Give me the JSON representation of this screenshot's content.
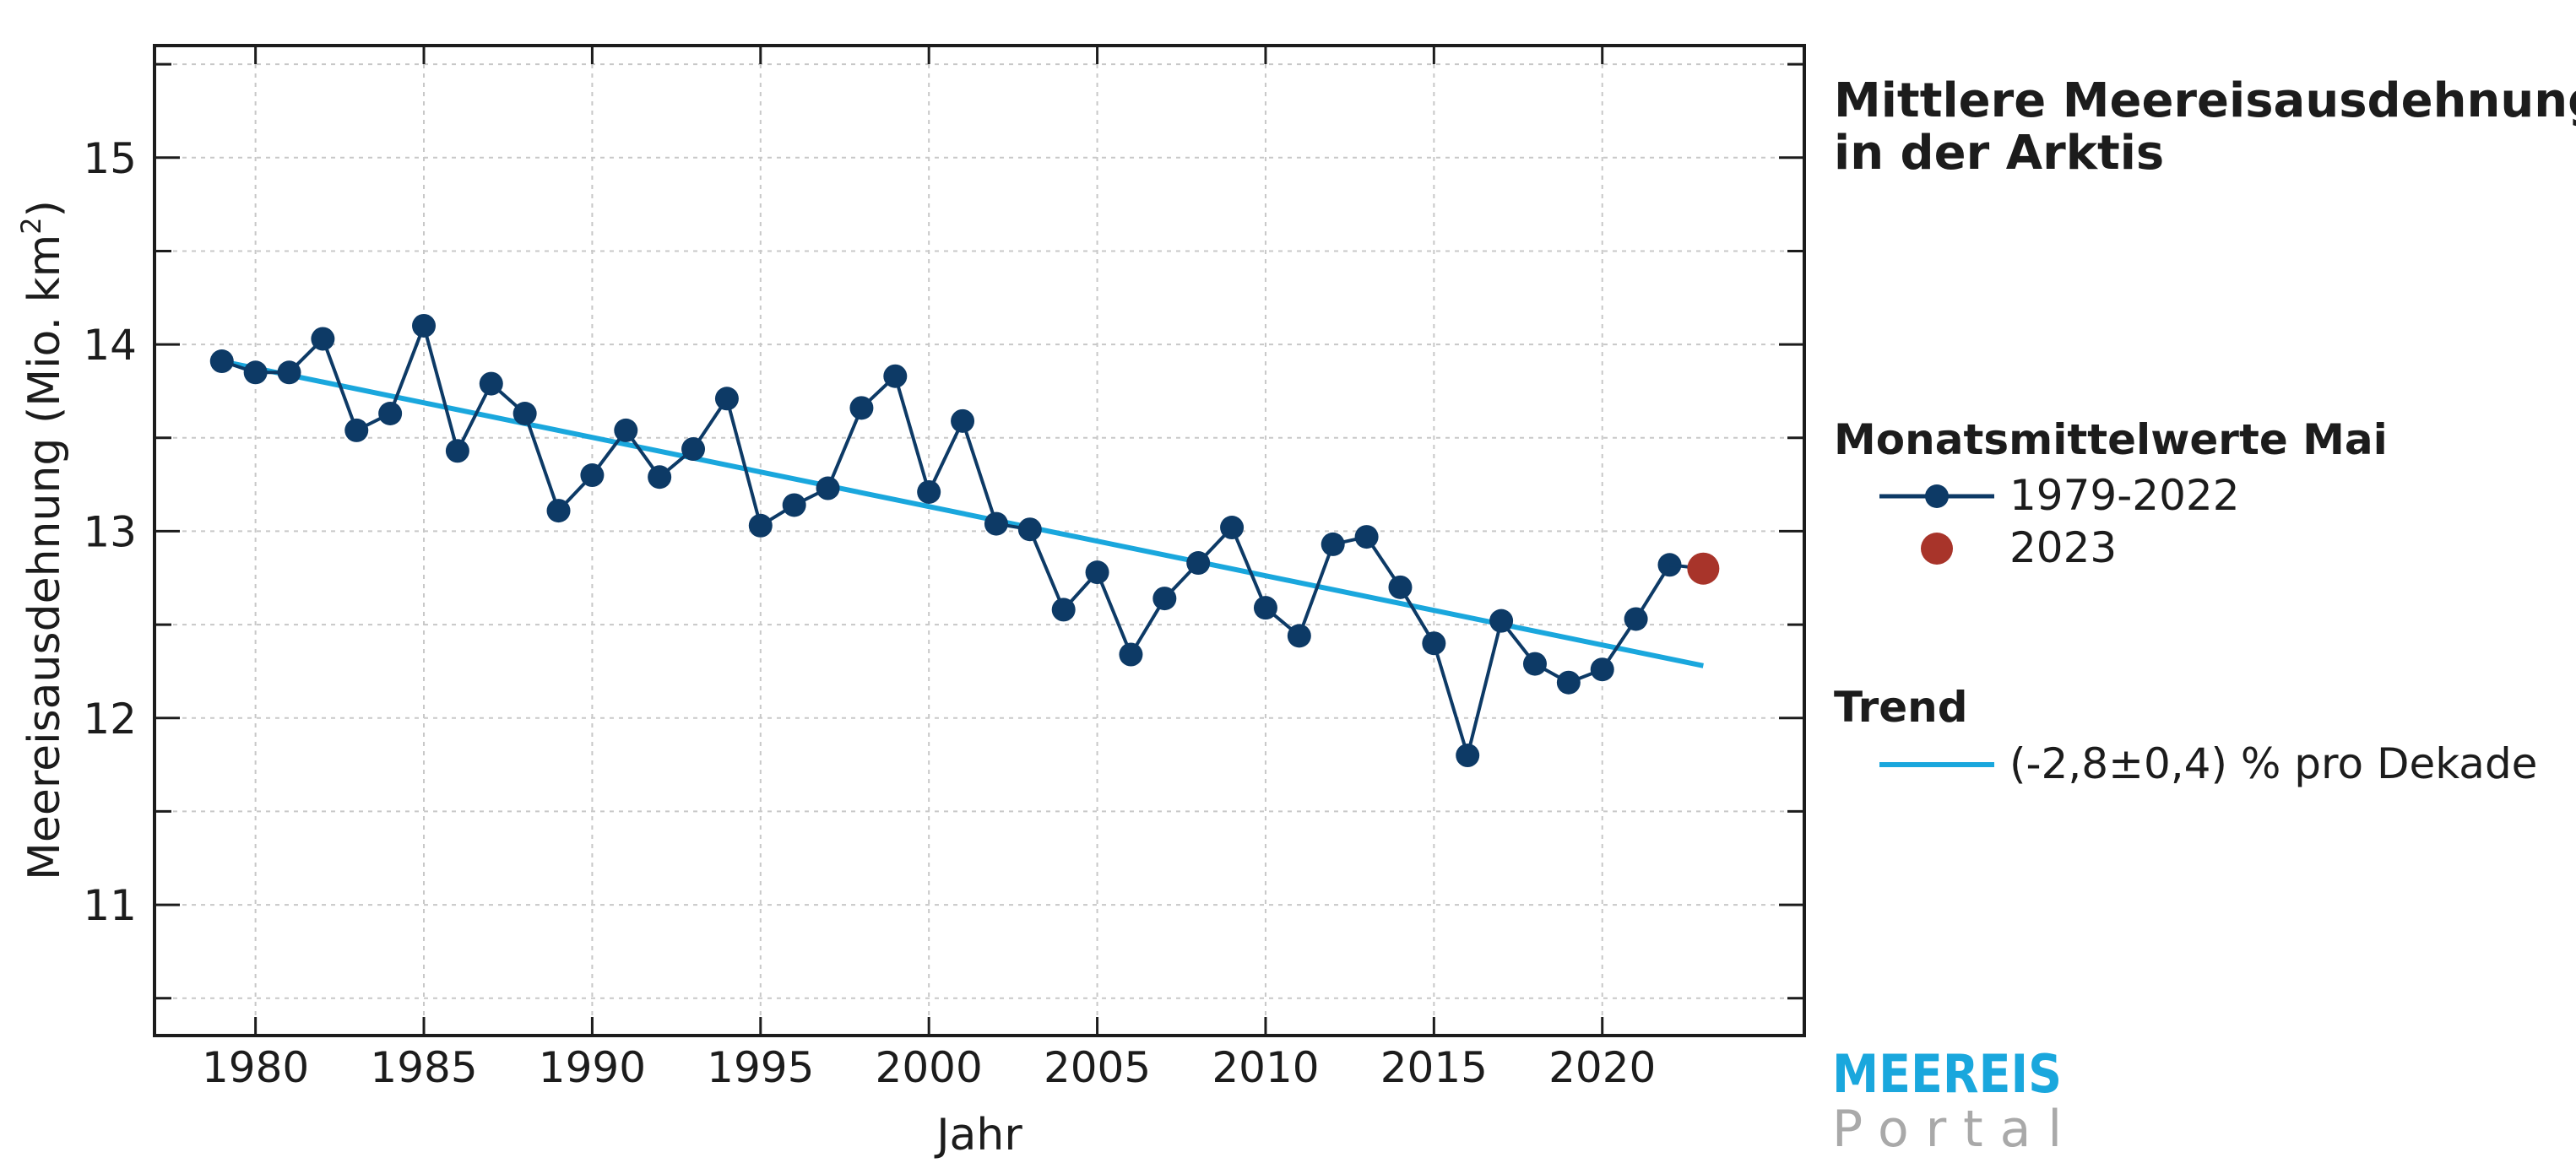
{
  "chart_data": {
    "type": "line",
    "title": "Mittlere Meereisausdehnung in der Arktis",
    "title_lines": [
      "Mittlere Meereisausdehnung",
      "in der Arktis"
    ],
    "xlabel": "Jahr",
    "ylabel": "Meereisausdehnung (Mio. km²)",
    "ylabel_base": "Meereisausdehnung (Mio. km",
    "ylabel_sup": "2",
    "ylabel_end": ")",
    "xlim": [
      1977,
      2026
    ],
    "ylim": [
      10.3,
      15.6
    ],
    "xticks": [
      1980,
      1985,
      1990,
      1995,
      2000,
      2005,
      2010,
      2015,
      2020
    ],
    "yticks": [
      11,
      12,
      13,
      14,
      15
    ],
    "grid": true,
    "legend_position": "right",
    "legend": {
      "group_title": "Monatsmittelwerte Mai",
      "trend_title": "Trend"
    },
    "colors": {
      "series": "#0d3a66",
      "highlight": "#a8342a",
      "trend": "#1aa7dd",
      "axis": "#1c1c1c",
      "grid": "#c8c8c8"
    },
    "series": [
      {
        "name": "1979-2022",
        "type": "line-marker",
        "x": [
          1979,
          1980,
          1981,
          1982,
          1983,
          1984,
          1985,
          1986,
          1987,
          1988,
          1989,
          1990,
          1991,
          1992,
          1993,
          1994,
          1995,
          1996,
          1997,
          1998,
          1999,
          2000,
          2001,
          2002,
          2003,
          2004,
          2005,
          2006,
          2007,
          2008,
          2009,
          2010,
          2011,
          2012,
          2013,
          2014,
          2015,
          2016,
          2017,
          2018,
          2019,
          2020,
          2021,
          2022
        ],
        "y": [
          13.91,
          13.85,
          13.85,
          14.03,
          13.54,
          13.63,
          14.1,
          13.43,
          13.79,
          13.63,
          13.11,
          13.3,
          13.54,
          13.29,
          13.44,
          13.71,
          13.03,
          13.14,
          13.23,
          13.66,
          13.83,
          13.21,
          13.59,
          13.04,
          13.01,
          12.58,
          12.78,
          12.34,
          12.64,
          12.83,
          13.02,
          12.59,
          12.44,
          12.93,
          12.97,
          12.7,
          12.4,
          11.8,
          12.52,
          12.29,
          12.19,
          12.26,
          12.53,
          12.82
        ]
      },
      {
        "name": "2023",
        "type": "marker",
        "x": [
          2023
        ],
        "y": [
          12.8
        ]
      },
      {
        "name": "(-2,8±0,4) % pro Dekade",
        "type": "trend",
        "x": [
          1979,
          2023
        ],
        "y": [
          13.91,
          12.28
        ]
      }
    ]
  },
  "branding": {
    "top": "MEEREIS",
    "bottom": "Portal",
    "top_color": "#1aa7dd",
    "bottom_color": "#a9a9a9"
  }
}
